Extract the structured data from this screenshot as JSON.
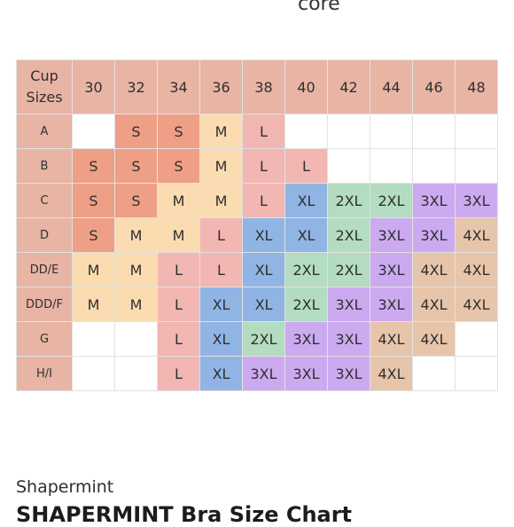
{
  "header": {
    "partial_word": "core"
  },
  "table": {
    "corner_label": "Cup\nSizes",
    "bands": [
      "30",
      "32",
      "34",
      "36",
      "38",
      "40",
      "42",
      "44",
      "46",
      "48"
    ],
    "rows": [
      {
        "cup": "A",
        "cells": [
          "",
          "S",
          "S",
          "M",
          "L",
          "",
          "",
          "",
          "",
          ""
        ]
      },
      {
        "cup": "B",
        "cells": [
          "S",
          "S",
          "S",
          "M",
          "L",
          "L",
          "",
          "",
          "",
          ""
        ]
      },
      {
        "cup": "C",
        "cells": [
          "S",
          "S",
          "M",
          "M",
          "L",
          "XL",
          "2XL",
          "2XL",
          "3XL",
          "3XL"
        ]
      },
      {
        "cup": "D",
        "cells": [
          "S",
          "M",
          "M",
          "L",
          "XL",
          "XL",
          "2XL",
          "3XL",
          "3XL",
          "4XL"
        ]
      },
      {
        "cup": "DD/E",
        "cells": [
          "M",
          "M",
          "L",
          "L",
          "XL",
          "2XL",
          "2XL",
          "3XL",
          "4XL",
          "4XL"
        ]
      },
      {
        "cup": "DDD/F",
        "cells": [
          "M",
          "M",
          "L",
          "XL",
          "XL",
          "2XL",
          "3XL",
          "3XL",
          "4XL",
          "4XL"
        ]
      },
      {
        "cup": "G",
        "cells": [
          "",
          "",
          "L",
          "XL",
          "2XL",
          "3XL",
          "3XL",
          "4XL",
          "4XL",
          ""
        ]
      },
      {
        "cup": "H/I",
        "cells": [
          "",
          "",
          "L",
          "XL",
          "3XL",
          "3XL",
          "3XL",
          "4XL",
          "",
          ""
        ]
      }
    ],
    "colors": {
      "header": "#e8b4a4",
      "S": "#ee9f86",
      "M": "#fbdcb1",
      "L": "#f2b6b3",
      "XL": "#90b5e5",
      "2XL": "#b3dcc0",
      "3XL": "#ccaaf0",
      "4XL": "#e7c5ab",
      "empty": "#ffffff"
    }
  },
  "footer": {
    "brand": "Shapermint",
    "product_title": "SHAPERMINT Bra Size Chart"
  }
}
